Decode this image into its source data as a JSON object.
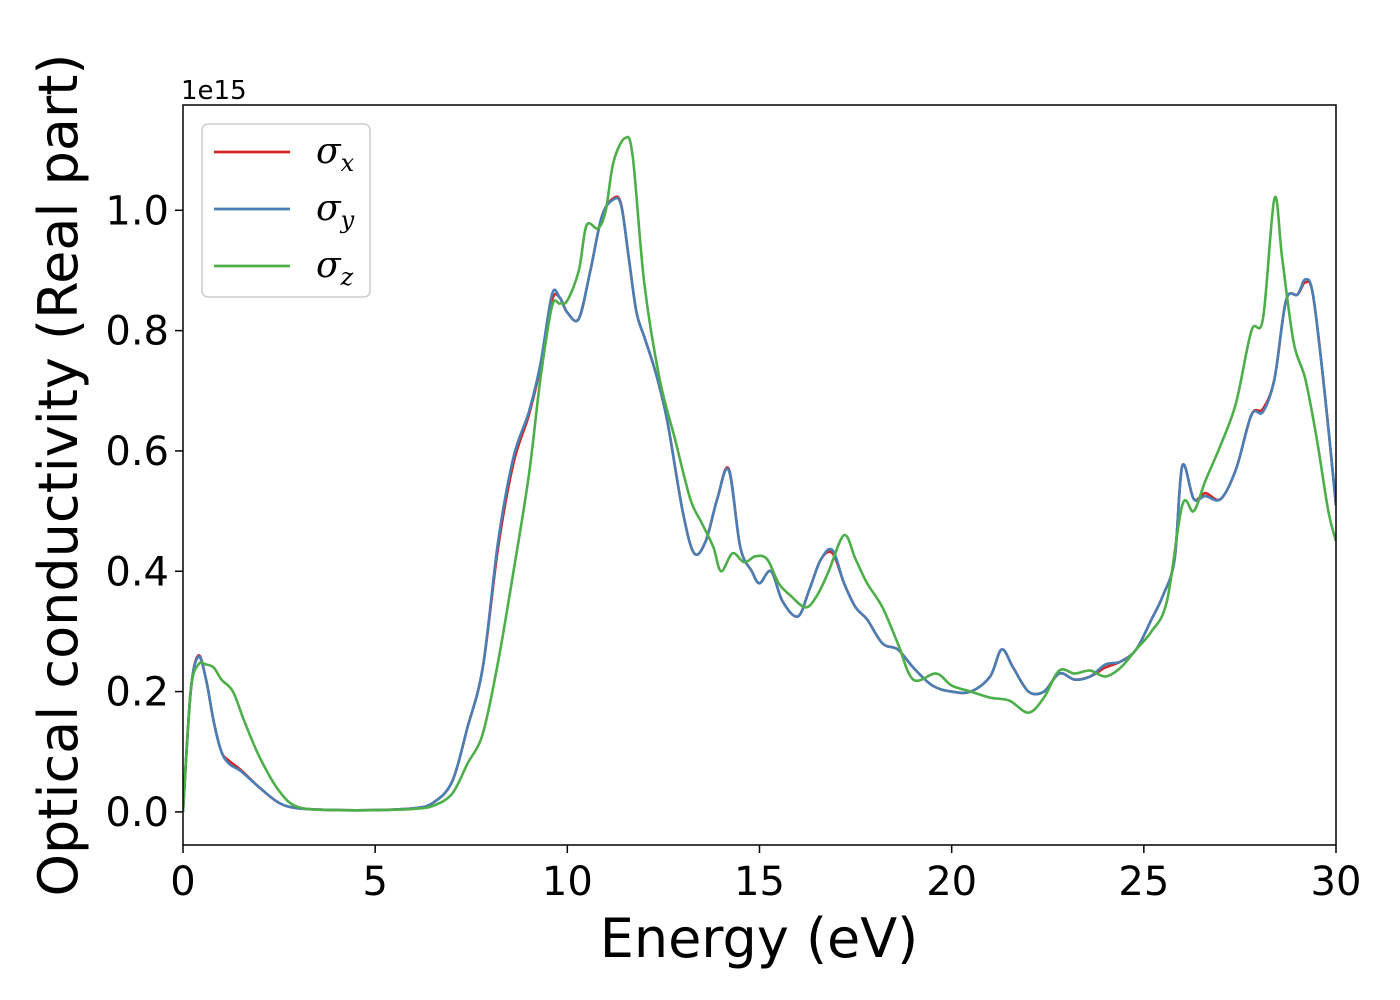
{
  "chart_data": {
    "type": "line",
    "title": "",
    "xlabel": "Energy (eV)",
    "ylabel": "Optical conductivity (Real part)",
    "y_offset_text": "1e15",
    "xlim": [
      0,
      30
    ],
    "ylim": [
      -0.055,
      1.175
    ],
    "x_ticks": [
      0,
      5,
      10,
      15,
      20,
      25,
      30
    ],
    "x_tick_labels": [
      "0",
      "5",
      "10",
      "15",
      "20",
      "25",
      "30"
    ],
    "y_ticks": [
      0.0,
      0.2,
      0.4,
      0.6,
      0.8,
      1.0
    ],
    "y_tick_labels": [
      "0.0",
      "0.2",
      "0.4",
      "0.6",
      "0.8",
      "1.0"
    ],
    "grid": false,
    "legend_position": "top-left",
    "series": [
      {
        "name": "σx",
        "legend_base": "σ",
        "legend_sub": "x",
        "color": "#d62728",
        "x": [
          0,
          0.2,
          0.4,
          0.6,
          0.8,
          1.0,
          1.2,
          1.5,
          2.0,
          2.5,
          3.0,
          4.0,
          5.0,
          6.0,
          6.5,
          7.0,
          7.4,
          7.8,
          8.2,
          8.6,
          9.0,
          9.3,
          9.6,
          9.8,
          10.0,
          10.3,
          10.6,
          10.9,
          11.2,
          11.4,
          11.6,
          11.8,
          12.0,
          12.3,
          12.6,
          13.0,
          13.3,
          13.6,
          13.9,
          14.2,
          14.5,
          14.8,
          15.0,
          15.3,
          15.6,
          16.0,
          16.3,
          16.6,
          16.9,
          17.2,
          17.5,
          17.8,
          18.2,
          18.6,
          19.0,
          19.5,
          20.0,
          20.5,
          21.0,
          21.3,
          21.6,
          22.0,
          22.4,
          22.8,
          23.2,
          23.6,
          24.0,
          24.4,
          24.8,
          25.2,
          25.5,
          25.8,
          26.0,
          26.3,
          26.6,
          27.0,
          27.4,
          27.8,
          28.1,
          28.4,
          28.7,
          29.0,
          29.2,
          29.4,
          29.7,
          30.0
        ],
        "y": [
          0.0,
          0.2,
          0.26,
          0.22,
          0.15,
          0.1,
          0.085,
          0.07,
          0.04,
          0.015,
          0.006,
          0.003,
          0.003,
          0.006,
          0.015,
          0.05,
          0.14,
          0.24,
          0.44,
          0.58,
          0.66,
          0.74,
          0.85,
          0.855,
          0.83,
          0.82,
          0.9,
          0.99,
          1.02,
          1.01,
          0.92,
          0.83,
          0.79,
          0.73,
          0.65,
          0.5,
          0.43,
          0.45,
          0.52,
          0.57,
          0.44,
          0.4,
          0.38,
          0.4,
          0.35,
          0.325,
          0.37,
          0.42,
          0.43,
          0.38,
          0.34,
          0.32,
          0.28,
          0.27,
          0.24,
          0.21,
          0.2,
          0.2,
          0.225,
          0.27,
          0.24,
          0.2,
          0.2,
          0.23,
          0.22,
          0.225,
          0.24,
          0.25,
          0.27,
          0.32,
          0.36,
          0.42,
          0.575,
          0.52,
          0.53,
          0.52,
          0.57,
          0.66,
          0.67,
          0.72,
          0.85,
          0.86,
          0.88,
          0.86,
          0.7,
          0.51
        ]
      },
      {
        "name": "σy",
        "legend_base": "σ",
        "legend_sub": "y",
        "color": "#4a7fb5",
        "x": [
          0,
          0.2,
          0.4,
          0.6,
          0.8,
          1.0,
          1.2,
          1.5,
          2.0,
          2.5,
          3.0,
          4.0,
          5.0,
          6.0,
          6.5,
          7.0,
          7.4,
          7.8,
          8.2,
          8.6,
          9.0,
          9.3,
          9.6,
          9.8,
          10.0,
          10.3,
          10.6,
          10.9,
          11.2,
          11.4,
          11.6,
          11.8,
          12.0,
          12.3,
          12.6,
          13.0,
          13.3,
          13.6,
          13.9,
          14.2,
          14.5,
          14.8,
          15.0,
          15.3,
          15.6,
          16.0,
          16.3,
          16.6,
          16.9,
          17.2,
          17.5,
          17.8,
          18.2,
          18.6,
          19.0,
          19.5,
          20.0,
          20.5,
          21.0,
          21.3,
          21.6,
          22.0,
          22.4,
          22.8,
          23.2,
          23.6,
          24.0,
          24.4,
          24.8,
          25.2,
          25.5,
          25.8,
          26.0,
          26.3,
          26.6,
          27.0,
          27.4,
          27.8,
          28.1,
          28.4,
          28.7,
          29.0,
          29.2,
          29.4,
          29.7,
          30.0
        ],
        "y": [
          0.0,
          0.2,
          0.258,
          0.22,
          0.15,
          0.1,
          0.08,
          0.068,
          0.04,
          0.015,
          0.006,
          0.003,
          0.003,
          0.006,
          0.015,
          0.05,
          0.14,
          0.24,
          0.45,
          0.59,
          0.665,
          0.745,
          0.86,
          0.855,
          0.83,
          0.82,
          0.9,
          0.99,
          1.018,
          1.008,
          0.92,
          0.83,
          0.79,
          0.73,
          0.65,
          0.5,
          0.43,
          0.45,
          0.52,
          0.568,
          0.44,
          0.4,
          0.38,
          0.4,
          0.35,
          0.325,
          0.37,
          0.42,
          0.435,
          0.38,
          0.34,
          0.32,
          0.28,
          0.27,
          0.24,
          0.21,
          0.2,
          0.2,
          0.225,
          0.27,
          0.24,
          0.2,
          0.2,
          0.23,
          0.22,
          0.225,
          0.245,
          0.25,
          0.27,
          0.32,
          0.36,
          0.42,
          0.575,
          0.52,
          0.525,
          0.52,
          0.57,
          0.66,
          0.665,
          0.72,
          0.85,
          0.86,
          0.885,
          0.86,
          0.7,
          0.51
        ]
      },
      {
        "name": "σz",
        "legend_base": "σ",
        "legend_sub": "z",
        "color": "#4daf4a",
        "x": [
          0,
          0.2,
          0.4,
          0.6,
          0.8,
          1.0,
          1.3,
          1.6,
          2.0,
          2.5,
          3.0,
          4.0,
          5.0,
          6.0,
          6.5,
          7.0,
          7.4,
          7.8,
          8.2,
          8.6,
          9.0,
          9.3,
          9.6,
          9.8,
          10.0,
          10.3,
          10.5,
          10.8,
          11.0,
          11.2,
          11.5,
          11.7,
          12.0,
          12.4,
          12.8,
          13.2,
          13.5,
          13.8,
          14.0,
          14.3,
          14.6,
          14.9,
          15.2,
          15.5,
          15.8,
          16.2,
          16.5,
          16.8,
          17.2,
          17.5,
          17.8,
          18.2,
          18.6,
          19.0,
          19.6,
          20.0,
          20.5,
          21.0,
          21.5,
          22.0,
          22.4,
          22.8,
          23.2,
          23.6,
          24.0,
          24.4,
          24.8,
          25.2,
          25.6,
          26.0,
          26.3,
          26.6,
          27.0,
          27.4,
          27.8,
          28.1,
          28.4,
          28.6,
          28.9,
          29.2,
          29.5,
          29.8,
          30.0
        ],
        "y": [
          0.0,
          0.2,
          0.245,
          0.245,
          0.24,
          0.22,
          0.2,
          0.15,
          0.09,
          0.035,
          0.008,
          0.003,
          0.003,
          0.005,
          0.01,
          0.03,
          0.08,
          0.13,
          0.25,
          0.4,
          0.56,
          0.72,
          0.84,
          0.845,
          0.85,
          0.9,
          0.975,
          0.97,
          1.0,
          1.08,
          1.12,
          1.09,
          0.88,
          0.72,
          0.62,
          0.52,
          0.48,
          0.44,
          0.4,
          0.43,
          0.415,
          0.425,
          0.42,
          0.38,
          0.36,
          0.34,
          0.36,
          0.4,
          0.46,
          0.42,
          0.38,
          0.34,
          0.28,
          0.22,
          0.23,
          0.21,
          0.2,
          0.19,
          0.185,
          0.165,
          0.19,
          0.235,
          0.23,
          0.235,
          0.225,
          0.24,
          0.27,
          0.3,
          0.35,
          0.51,
          0.5,
          0.55,
          0.61,
          0.68,
          0.8,
          0.82,
          1.02,
          0.92,
          0.78,
          0.72,
          0.62,
          0.5,
          0.45
        ]
      }
    ]
  }
}
